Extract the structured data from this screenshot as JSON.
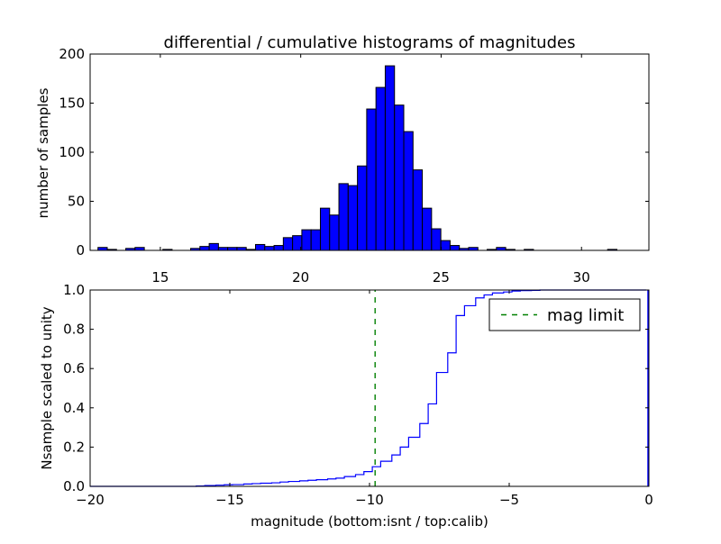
{
  "colors": {
    "bar_fill": "#0000ff",
    "bar_edge": "#000000",
    "cum_line": "#0000ff",
    "mag_limit_line": "#008000",
    "frame": "#000000",
    "background": "#ffffff"
  },
  "chart_data": [
    {
      "type": "bar",
      "title": "differential / cumulative histograms of magnitudes",
      "xlabel": "",
      "ylabel": "number of samples",
      "xlim": [
        12.5,
        32.4
      ],
      "ylim": [
        0,
        200
      ],
      "x_ticks": [
        "15",
        "20",
        "25",
        "30"
      ],
      "y_ticks": [
        "0",
        "50",
        "100",
        "150",
        "200"
      ],
      "grid": false,
      "bin_width": 0.33,
      "bin_starts": [
        12.78,
        13.11,
        13.44,
        13.77,
        14.1,
        14.43,
        14.76,
        15.09,
        15.42,
        15.75,
        16.08,
        16.41,
        16.74,
        17.07,
        17.4,
        17.73,
        18.06,
        18.39,
        18.72,
        19.05,
        19.38,
        19.71,
        20.04,
        20.37,
        20.7,
        21.03,
        21.36,
        21.69,
        22.02,
        22.35,
        22.68,
        23.01,
        23.34,
        23.67,
        24.0,
        24.33,
        24.66,
        24.99,
        25.32,
        25.65,
        25.98,
        26.31,
        26.64,
        26.97,
        27.3,
        27.63,
        27.96,
        28.29,
        28.62,
        28.95,
        29.28,
        29.61,
        29.94,
        30.27,
        30.6,
        30.93,
        31.26,
        31.59,
        31.92
      ],
      "values": [
        3,
        1,
        0,
        2,
        3,
        0,
        0,
        1,
        0,
        0,
        2,
        4,
        7,
        3,
        3,
        3,
        1,
        6,
        4,
        5,
        13,
        15,
        21,
        21,
        43,
        36,
        68,
        66,
        86,
        144,
        166,
        188,
        148,
        121,
        82,
        43,
        22,
        10,
        5,
        2,
        3,
        0,
        1,
        3,
        1,
        0,
        1,
        0,
        0,
        0,
        0,
        0,
        0,
        0,
        0,
        1,
        0,
        0,
        0
      ]
    },
    {
      "type": "line",
      "title": "",
      "xlabel": "magnitude (bottom:isnt / top:calib)",
      "ylabel": "Nsample scaled to unity",
      "xlim": [
        -20,
        0
      ],
      "ylim": [
        0,
        1
      ],
      "x_ticks": [
        "−20",
        "−15",
        "−10",
        "−5",
        "0"
      ],
      "y_ticks": [
        "0.0",
        "0.2",
        "0.4",
        "0.6",
        "0.8",
        "1.0"
      ],
      "grid": false,
      "legend_position": "top-right",
      "series": [
        {
          "style": "step",
          "x": [
            -20.0,
            -16.2,
            -15.9,
            -15.5,
            -15.2,
            -14.9,
            -14.5,
            -14.2,
            -13.9,
            -13.5,
            -13.2,
            -12.9,
            -12.5,
            -12.2,
            -11.9,
            -11.5,
            -11.2,
            -10.9,
            -10.5,
            -10.2,
            -9.9,
            -9.6,
            -9.2,
            -8.9,
            -8.6,
            -8.2,
            -7.9,
            -7.6,
            -7.2,
            -6.9,
            -6.6,
            -6.2,
            -5.9,
            -5.6,
            -5.2,
            -4.9,
            -4.6,
            -4.2,
            -3.9,
            -0.1
          ],
          "values": [
            0.0,
            0.002,
            0.004,
            0.006,
            0.008,
            0.009,
            0.012,
            0.014,
            0.016,
            0.018,
            0.022,
            0.025,
            0.028,
            0.031,
            0.034,
            0.038,
            0.042,
            0.05,
            0.06,
            0.075,
            0.1,
            0.128,
            0.16,
            0.2,
            0.25,
            0.32,
            0.42,
            0.58,
            0.68,
            0.87,
            0.92,
            0.96,
            0.975,
            0.985,
            0.99,
            0.995,
            0.997,
            0.998,
            1.0,
            1.0
          ]
        },
        {
          "name": "mag limit",
          "style": "dashed-vertical",
          "x": [
            -9.8,
            -9.8
          ],
          "values": [
            0,
            1
          ]
        }
      ]
    }
  ]
}
